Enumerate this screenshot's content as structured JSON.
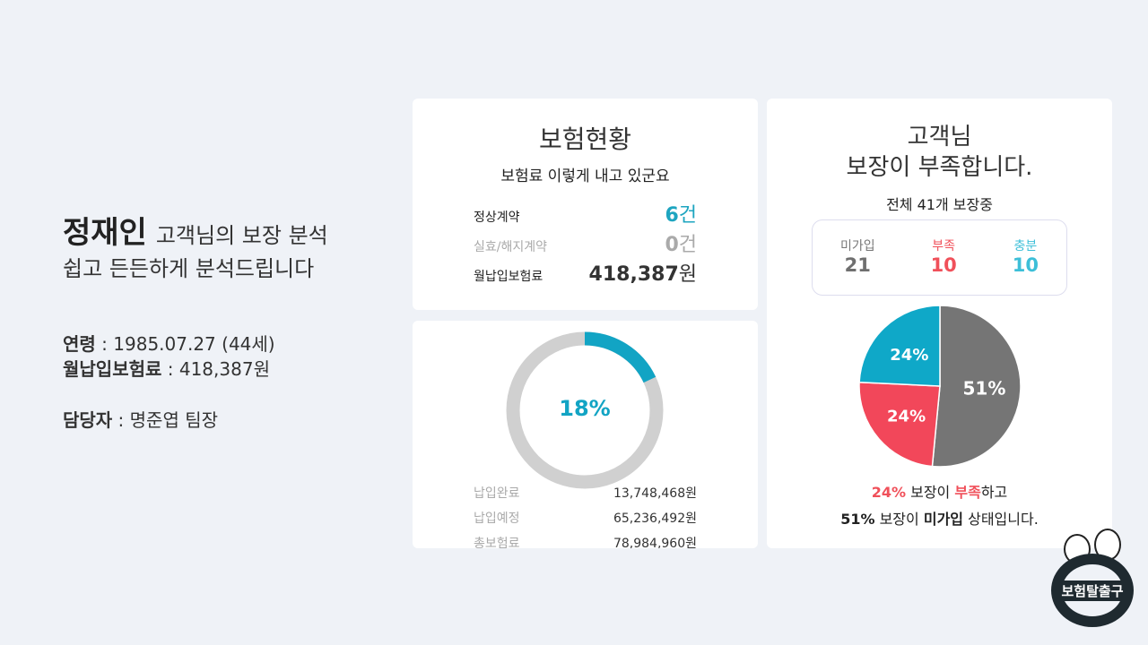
{
  "customer": {
    "name": "정재인",
    "title_suffix": "고객님의 보장 분석",
    "tagline": "쉽고 든든하게 분석드립니다",
    "birth_label": "연령",
    "birth_value": "1985.07.27 (44세)",
    "premium_label": "월납입보험료",
    "premium_value": "418,387원",
    "manager_label": "담당자",
    "manager_value": "명준엽 팀장"
  },
  "status_card": {
    "title": "보험현황",
    "subtitle": "보험료 이렇게 내고 있군요",
    "rows": [
      {
        "label": "정상계약",
        "value": "6",
        "unit": "건",
        "color": "#1ea5c0"
      },
      {
        "label": "실효/해지계약",
        "value": "0",
        "unit": "건",
        "color": "#aaaaaa"
      },
      {
        "label": "월납입보험료",
        "value": "418,387",
        "unit": "원",
        "color": "#333333"
      }
    ]
  },
  "payment_card": {
    "percent": 18,
    "percent_label": "18%",
    "accent": "#12a4c4",
    "track": "#d0d0d0",
    "rows": [
      {
        "label": "납입완료",
        "value": "13,748,468원"
      },
      {
        "label": "납입예정",
        "value": "65,236,492원"
      },
      {
        "label": "총보험료",
        "value": "78,984,960원"
      }
    ]
  },
  "coverage_card": {
    "title_line1": "고객님",
    "title_line2": "보장이 부족합니다.",
    "summary": "전체 41개 보장중",
    "stats": [
      {
        "label": "미가입",
        "value": "21",
        "color": "#6f6f6f"
      },
      {
        "label": "부족",
        "value": "10",
        "color": "#f0505a"
      },
      {
        "label": "충분",
        "value": "10",
        "color": "#3dbfd8"
      }
    ],
    "chart_data": {
      "type": "pie",
      "slices": [
        {
          "label": "51%",
          "value": 51,
          "color": "#757575"
        },
        {
          "label": "24%",
          "value": 24,
          "color": "#f2475a"
        },
        {
          "label": "24%",
          "value": 24,
          "color": "#0fa8c8"
        }
      ]
    },
    "footer": {
      "p1": "24%",
      "p2": " 보장이 ",
      "p3": "부족",
      "p4": "하고",
      "q1": "51%",
      "q2": " 보장이 ",
      "q3": "미가입",
      "q4": " 상태입니다."
    }
  },
  "logo": {
    "text": "보험탈출구"
  }
}
